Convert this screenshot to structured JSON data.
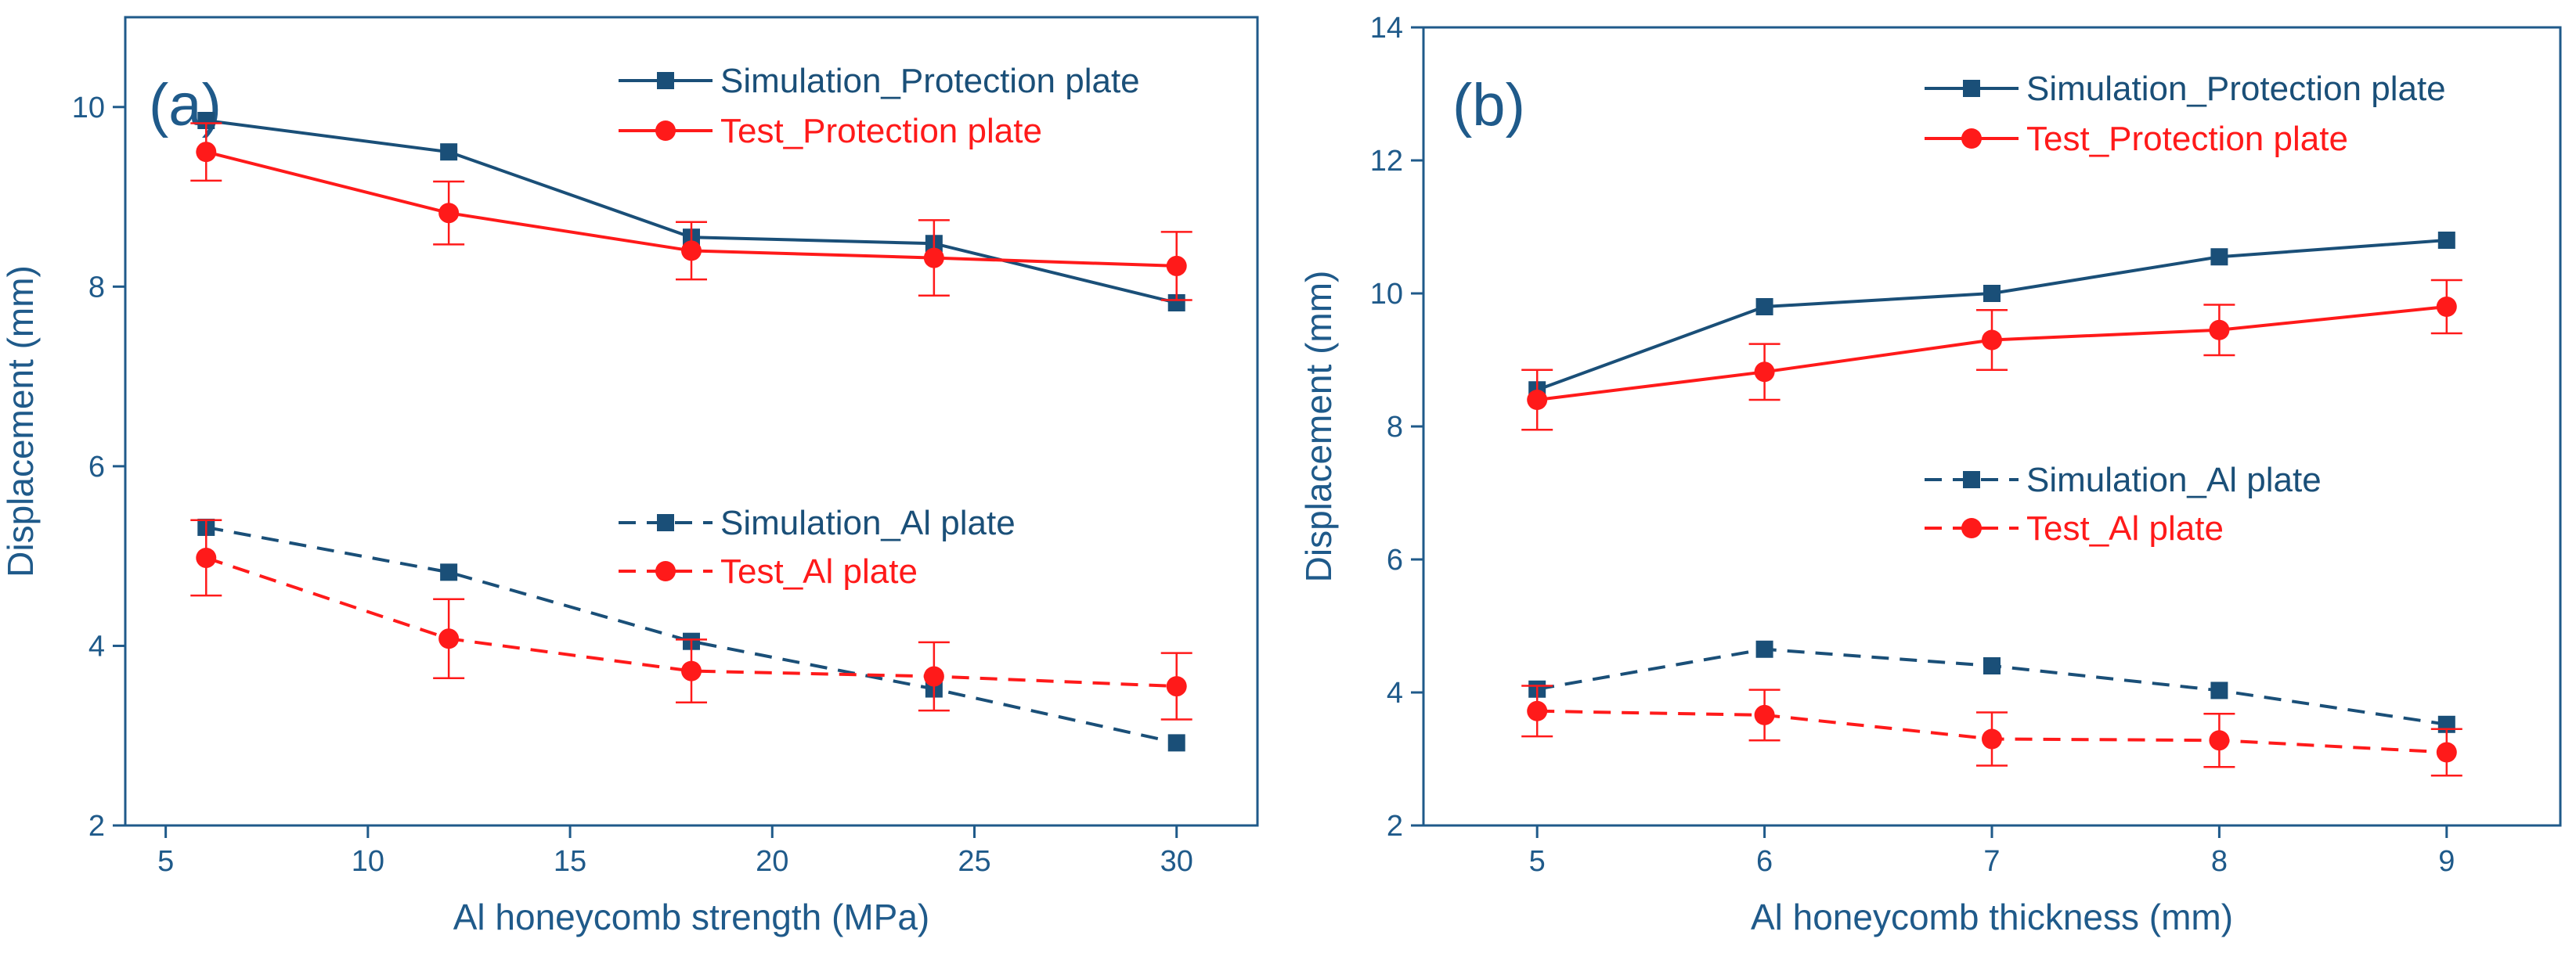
{
  "colors": {
    "axis": "#1f5a8a",
    "simulation": "#1a4f78",
    "test": "#ff1a1a"
  },
  "chart_data": [
    {
      "type": "line",
      "panel_label": "(a)",
      "xlabel": "Al honeycomb strength (MPa)",
      "ylabel": "Displacement (mm)",
      "xlim": [
        4,
        32
      ],
      "ylim": [
        2,
        11
      ],
      "xticks": [
        5,
        10,
        15,
        20,
        25,
        30
      ],
      "yticks": [
        2,
        4,
        6,
        8,
        10
      ],
      "x": [
        6,
        12,
        18,
        24,
        30
      ],
      "series": [
        {
          "name": "Simulation_Protection plate",
          "style": "solid",
          "marker": "square",
          "color": "simulation",
          "values": [
            9.85,
            9.5,
            8.55,
            8.48,
            7.82
          ]
        },
        {
          "name": "Test_Protection plate",
          "style": "solid",
          "marker": "circle",
          "color": "test",
          "values": [
            9.5,
            8.82,
            8.4,
            8.32,
            8.23
          ],
          "errors": [
            0.32,
            0.35,
            0.32,
            0.42,
            0.38
          ]
        },
        {
          "name": "Simulation_Al plate",
          "style": "dashed",
          "marker": "square",
          "color": "simulation",
          "values": [
            5.32,
            4.82,
            4.05,
            3.52,
            2.92
          ]
        },
        {
          "name": "Test_Al plate",
          "style": "dashed",
          "marker": "circle",
          "color": "test",
          "values": [
            4.98,
            4.08,
            3.72,
            3.66,
            3.55
          ],
          "errors": [
            0.42,
            0.44,
            0.35,
            0.38,
            0.37
          ]
        }
      ]
    },
    {
      "type": "line",
      "panel_label": "(b)",
      "xlabel": "Al honeycomb thickness (mm)",
      "ylabel": "Displacement (mm)",
      "xlim": [
        4.5,
        9.5
      ],
      "ylim": [
        2,
        14
      ],
      "xticks": [
        5,
        6,
        7,
        8,
        9
      ],
      "yticks": [
        2,
        4,
        6,
        8,
        10,
        12,
        14
      ],
      "x": [
        5,
        6,
        7,
        8,
        9
      ],
      "series": [
        {
          "name": "Simulation_Protection plate",
          "style": "solid",
          "marker": "square",
          "color": "simulation",
          "values": [
            8.55,
            9.8,
            10.0,
            10.55,
            10.8
          ]
        },
        {
          "name": "Test_Protection plate",
          "style": "solid",
          "marker": "circle",
          "color": "test",
          "values": [
            8.4,
            8.82,
            9.3,
            9.45,
            9.8
          ],
          "errors": [
            0.45,
            0.42,
            0.45,
            0.38,
            0.4
          ]
        },
        {
          "name": "Simulation_Al plate",
          "style": "dashed",
          "marker": "square",
          "color": "simulation",
          "values": [
            4.05,
            4.65,
            4.4,
            4.03,
            3.52
          ]
        },
        {
          "name": "Test_Al plate",
          "style": "dashed",
          "marker": "circle",
          "color": "test",
          "values": [
            3.72,
            3.66,
            3.3,
            3.28,
            3.1
          ],
          "errors": [
            0.38,
            0.38,
            0.4,
            0.4,
            0.35
          ]
        }
      ]
    }
  ]
}
